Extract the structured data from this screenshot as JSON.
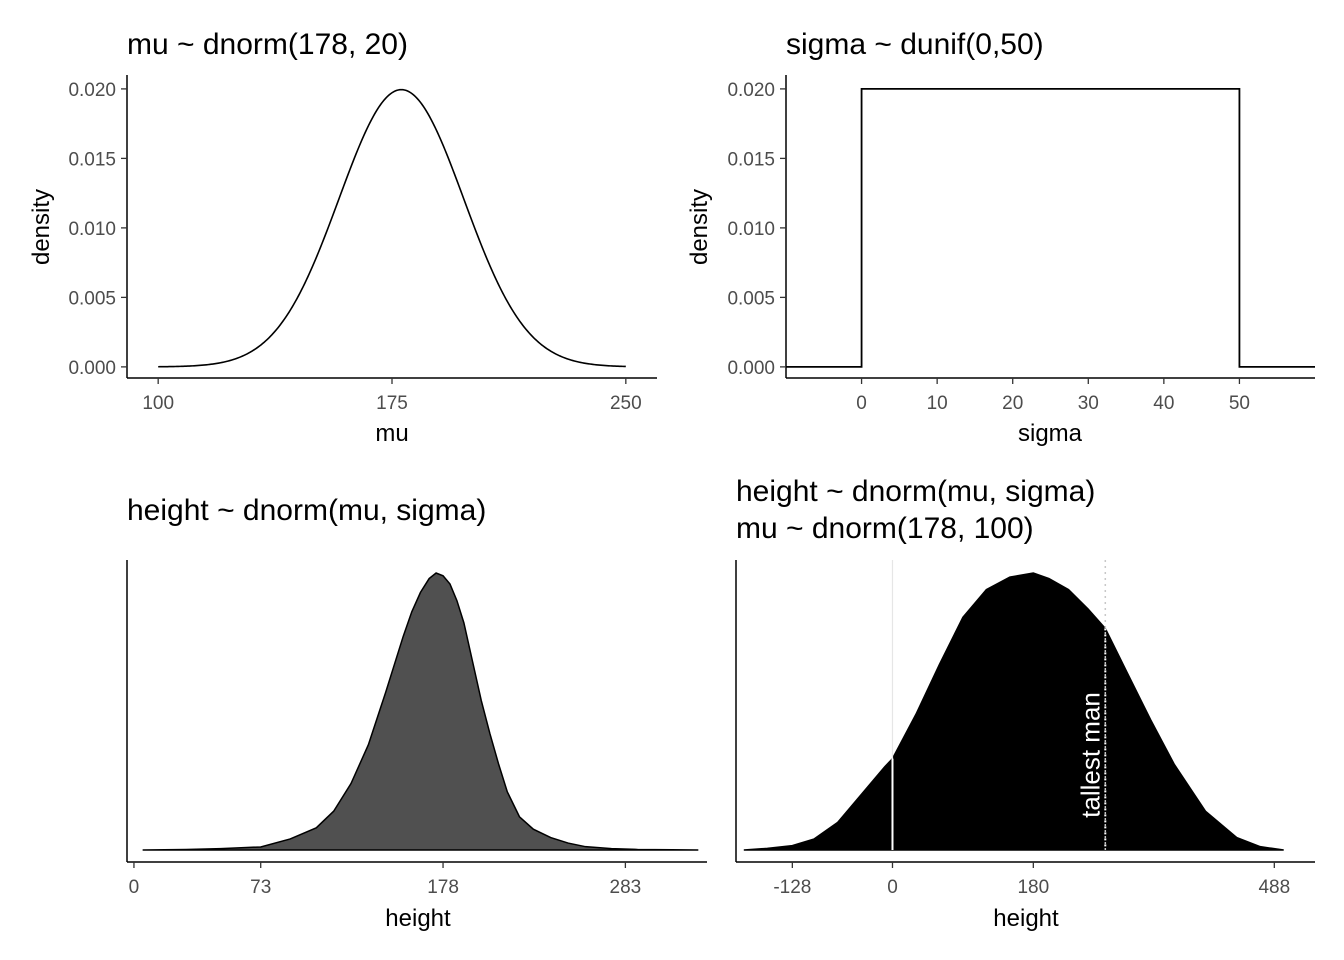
{
  "chart_data": [
    {
      "type": "line",
      "title": "mu ~ dnorm(178, 20)",
      "xlabel": "mu",
      "ylabel": "density",
      "xlim": [
        90,
        260
      ],
      "ylim": [
        -0.0008,
        0.021
      ],
      "x_ticks": [
        100,
        175,
        250
      ],
      "y_ticks": [
        "0.000",
        "0.005",
        "0.010",
        "0.015",
        "0.020"
      ],
      "y_tick_values": [
        0,
        0.005,
        0.01,
        0.015,
        0.02
      ],
      "distribution": {
        "family": "normal",
        "mean": 178,
        "sd": 20,
        "from": 100,
        "to": 250
      },
      "grid": false
    },
    {
      "type": "line",
      "title": "sigma ~ dunif(0,50)",
      "xlabel": "sigma",
      "ylabel": "density",
      "xlim": [
        -10,
        60
      ],
      "ylim": [
        -0.0008,
        0.021
      ],
      "x_ticks": [
        0,
        10,
        20,
        30,
        40,
        50
      ],
      "y_ticks": [
        "0.000",
        "0.005",
        "0.010",
        "0.015",
        "0.020"
      ],
      "y_tick_values": [
        0,
        0.005,
        0.01,
        0.015,
        0.02
      ],
      "series": [
        {
          "x": [
            -10,
            0,
            0,
            50,
            50,
            60
          ],
          "y": [
            0,
            0,
            0.02,
            0.02,
            0,
            0
          ]
        }
      ],
      "grid": false
    },
    {
      "type": "area",
      "title": "height ~ dnorm(mu, sigma)",
      "xlabel": "height",
      "ylabel": "",
      "xlim": [
        -4,
        330
      ],
      "x_ticks": [
        0,
        73,
        178,
        283
      ],
      "fill": "#505050",
      "series": [
        {
          "x": [
            5,
            30,
            50,
            65,
            73,
            90,
            105,
            115,
            125,
            135,
            145,
            155,
            160,
            165,
            170,
            174,
            178,
            182,
            186,
            190,
            195,
            200,
            205,
            210,
            215,
            222,
            230,
            240,
            250,
            260,
            275,
            290,
            310,
            325
          ],
          "y": [
            0,
            0.002,
            0.005,
            0.009,
            0.011,
            0.04,
            0.08,
            0.14,
            0.24,
            0.38,
            0.57,
            0.77,
            0.86,
            0.93,
            0.98,
            1.0,
            0.99,
            0.96,
            0.9,
            0.82,
            0.68,
            0.54,
            0.42,
            0.31,
            0.21,
            0.12,
            0.075,
            0.045,
            0.025,
            0.012,
            0.005,
            0.002,
            0.0008,
            0
          ]
        }
      ],
      "grid": false
    },
    {
      "type": "area",
      "title": [
        "height ~ dnorm(mu, sigma)",
        "mu ~ dnorm(178, 100)"
      ],
      "xlabel": "height",
      "ylabel": "",
      "xlim": [
        -200,
        540
      ],
      "x_ticks": [
        -128,
        0,
        180,
        488
      ],
      "fill": "#000000",
      "series": [
        {
          "x": [
            -190,
            -160,
            -128,
            -100,
            -70,
            -40,
            -10,
            0,
            30,
            60,
            90,
            120,
            150,
            180,
            200,
            225,
            250,
            272,
            300,
            330,
            360,
            400,
            440,
            470,
            500
          ],
          "y": [
            0,
            0.006,
            0.016,
            0.04,
            0.1,
            0.2,
            0.3,
            0.33,
            0.49,
            0.67,
            0.84,
            0.94,
            0.985,
            1.0,
            0.98,
            0.94,
            0.87,
            0.8,
            0.64,
            0.47,
            0.31,
            0.14,
            0.045,
            0.012,
            0
          ]
        }
      ],
      "reference_lines": [
        {
          "x": 0,
          "style": "solid",
          "color": "#ffffff"
        },
        {
          "x": 272,
          "style": "dotted",
          "color": "#ffffff"
        }
      ],
      "annotation": {
        "text": "tallest man",
        "x": 272
      },
      "grid": false
    }
  ]
}
